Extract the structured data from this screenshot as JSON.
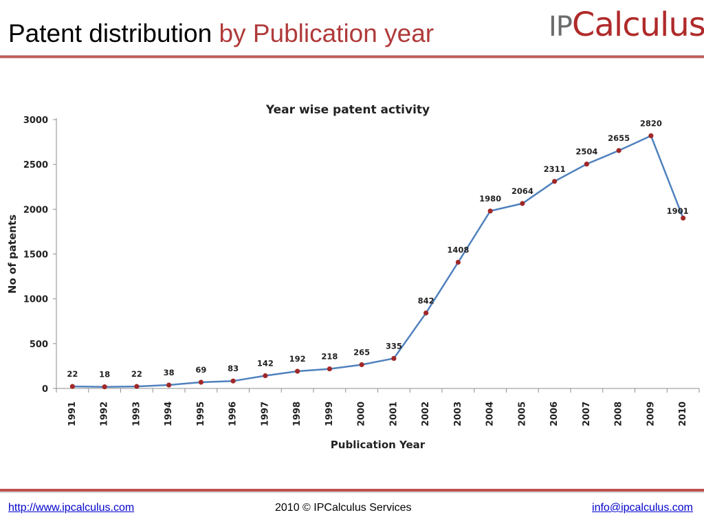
{
  "slide": {
    "title_main": "Patent distribution",
    "title_accent": "by Publication year"
  },
  "logo": {
    "ip": "IP",
    "calc": "Calculus"
  },
  "footer": {
    "url": "http://www.ipcalculus.com",
    "copyright": "2010 © IPCalculus Services",
    "email": "info@ipcalculus.com"
  },
  "colors": {
    "line": "#4f81bd",
    "marker": "#a02828",
    "accent": "#b03a3a",
    "rule": "#c0504d"
  },
  "chart_data": {
    "type": "line",
    "title": "Year wise patent activity",
    "xlabel": "Publication Year",
    "ylabel": "No of patents",
    "ylim": [
      0,
      3000
    ],
    "yticks": [
      0,
      500,
      1000,
      1500,
      2000,
      2500,
      3000
    ],
    "grid": false,
    "categories": [
      "1991",
      "1992",
      "1993",
      "1994",
      "1995",
      "1996",
      "1997",
      "1998",
      "1999",
      "2000",
      "2001",
      "2002",
      "2003",
      "2004",
      "2005",
      "2006",
      "2007",
      "2008",
      "2009",
      "2010"
    ],
    "series": [
      {
        "values": [
          22,
          18,
          22,
          38,
          69,
          83,
          142,
          192,
          218,
          265,
          335,
          842,
          1408,
          1980,
          2064,
          2311,
          2504,
          2655,
          2820,
          1901
        ]
      }
    ]
  }
}
